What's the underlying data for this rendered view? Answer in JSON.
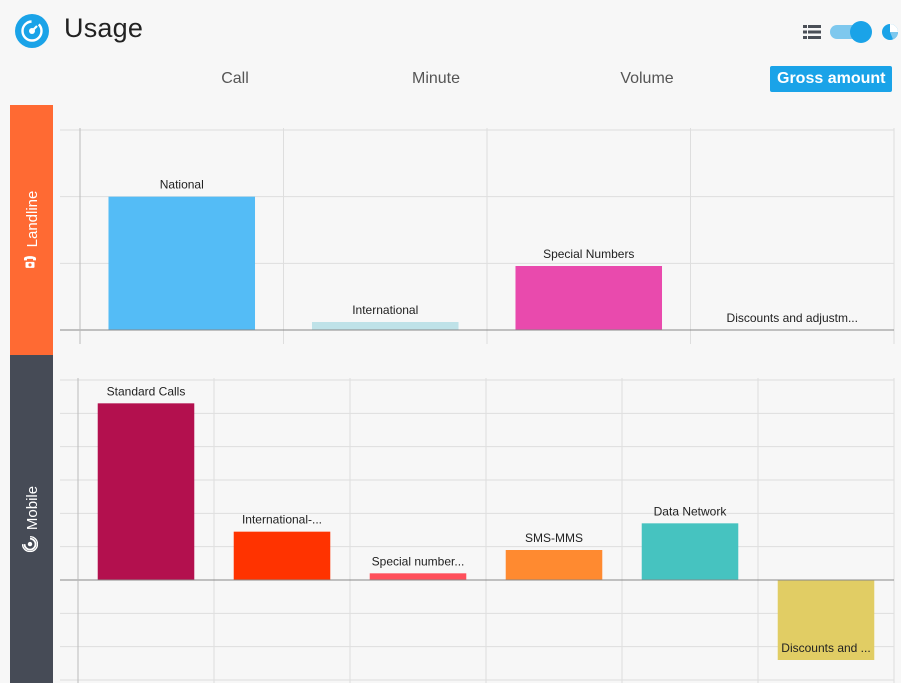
{
  "header": {
    "title": "Usage",
    "accent": "#1aa3e8",
    "icons": [
      "usage-logo-icon",
      "list-view-icon",
      "view-toggle",
      "pie-chart-icon"
    ]
  },
  "tabs": [
    {
      "label": "Call",
      "active": false
    },
    {
      "label": "Minute",
      "active": false
    },
    {
      "label": "Volume",
      "active": false
    },
    {
      "label": "Gross amount",
      "active": true
    }
  ],
  "sections": {
    "landline": {
      "label": "Landline",
      "color": "#ff6a33",
      "icon": "phone-icon"
    },
    "mobile": {
      "label": "Mobile",
      "color": "#464b56",
      "icon": "signal-icon"
    }
  },
  "chart_data": [
    {
      "type": "bar",
      "section": "Landline",
      "categories": [
        "National",
        "International",
        "Special Numbers",
        "Discounts and adjustm..."
      ],
      "values": [
        100,
        6,
        48,
        0
      ],
      "colors": [
        "#54bcf6",
        "#bfe2e8",
        "#e94aad",
        "#cccccc"
      ],
      "ylim": [
        0,
        150
      ],
      "gridlines": 3,
      "grid": true
    },
    {
      "type": "bar",
      "section": "Mobile",
      "categories": [
        "Standard Calls",
        "International-...",
        "Special number...",
        "SMS-MMS",
        "Data Network",
        "Discounts and ..."
      ],
      "values": [
        53,
        14.5,
        2,
        9,
        17,
        -24
      ],
      "colors": [
        "#b3104e",
        "#ff3300",
        "#ff4f5a",
        "#ff8a30",
        "#46c3c0",
        "#e1cd64"
      ],
      "ylim": [
        -30,
        60
      ],
      "gridlines": 9,
      "grid": true
    }
  ]
}
